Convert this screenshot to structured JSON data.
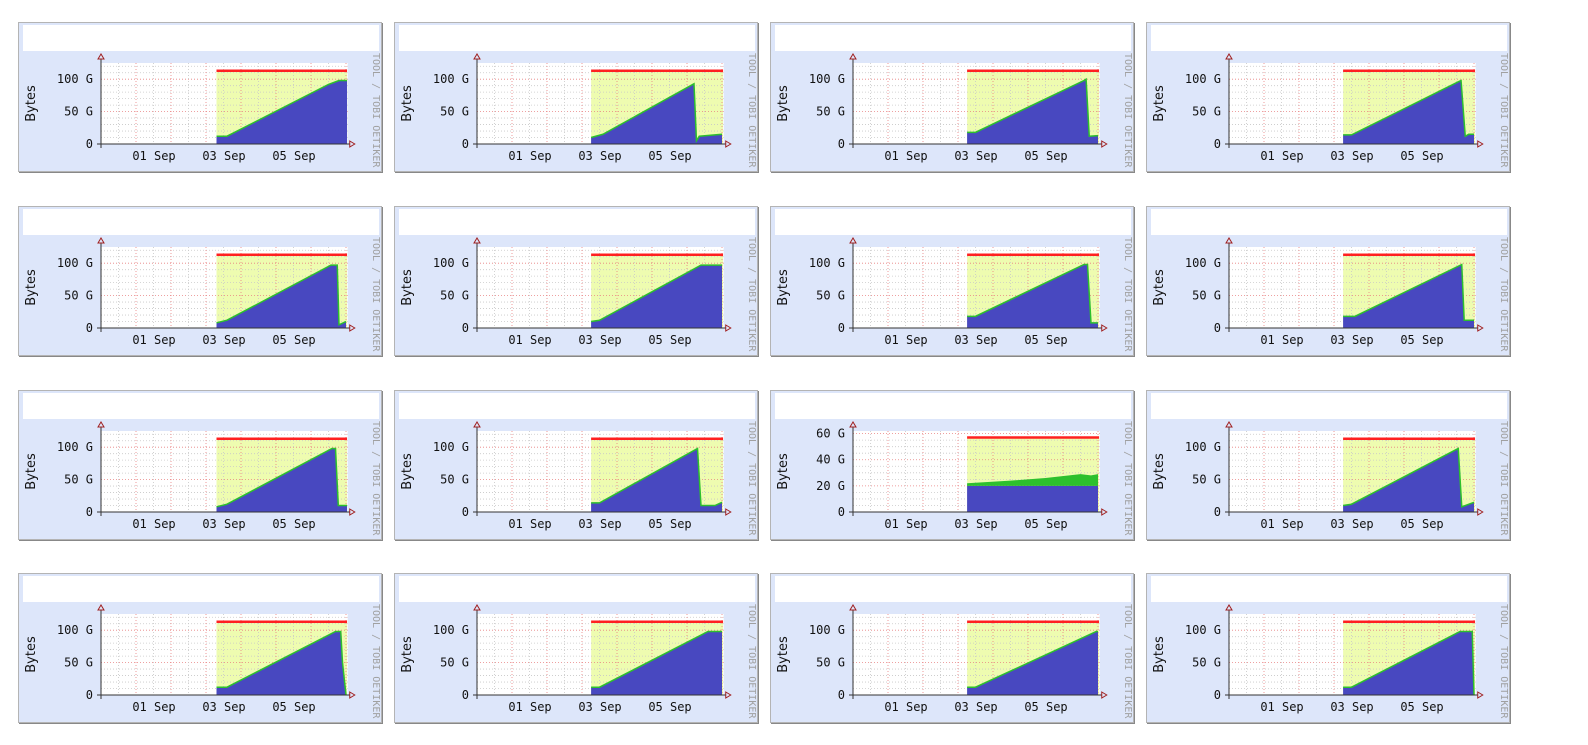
{
  "watermark": "TOOL / TOBI OETIKER",
  "colors": {
    "used": "#4848c0",
    "line": "#2dc02d",
    "capacity_fill": "#eefcb0",
    "limit": "#ff2020",
    "grid_major": "#e88080",
    "grid_minor": "#c8c8c8",
    "bg": "#dde6fa"
  },
  "chart_data": {
    "type": "area",
    "ylabel": "Bytes",
    "x_ticks": [
      {
        "d": 1,
        "label": "01 Sep"
      },
      {
        "d": 3,
        "label": "03 Sep"
      },
      {
        "d": 5,
        "label": "05 Sep"
      }
    ],
    "xlim": [
      0,
      7.05
    ],
    "graphs": [
      {
        "ymax": 125,
        "yticks": [
          [
            0,
            "0"
          ],
          [
            50,
            "50 G"
          ],
          [
            100,
            "100 G"
          ]
        ],
        "limit": 113,
        "start": 3.3,
        "used": [
          [
            3.3,
            12
          ],
          [
            3.6,
            12
          ],
          [
            6.5,
            92
          ],
          [
            6.8,
            98
          ],
          [
            7.03,
            98
          ]
        ]
      },
      {
        "ymax": 125,
        "yticks": [
          [
            0,
            "0"
          ],
          [
            50,
            "50 G"
          ],
          [
            100,
            "100 G"
          ]
        ],
        "limit": 113,
        "start": 3.26,
        "used": [
          [
            3.26,
            10
          ],
          [
            3.6,
            15
          ],
          [
            6.2,
            93
          ],
          [
            6.27,
            5
          ],
          [
            6.35,
            12
          ],
          [
            7.0,
            15
          ]
        ]
      },
      {
        "ymax": 125,
        "yticks": [
          [
            0,
            "0"
          ],
          [
            50,
            "50 G"
          ],
          [
            100,
            "100 G"
          ]
        ],
        "limit": 113,
        "start": 3.26,
        "used": [
          [
            3.26,
            18
          ],
          [
            3.5,
            18
          ],
          [
            6.6,
            98
          ],
          [
            6.66,
            100
          ],
          [
            6.75,
            12
          ],
          [
            7.0,
            13
          ]
        ]
      },
      {
        "ymax": 125,
        "yticks": [
          [
            0,
            "0"
          ],
          [
            50,
            "50 G"
          ],
          [
            100,
            "100 G"
          ]
        ],
        "limit": 113,
        "start": 3.26,
        "used": [
          [
            3.26,
            14
          ],
          [
            3.5,
            14
          ],
          [
            6.55,
            96
          ],
          [
            6.63,
            98
          ],
          [
            6.75,
            12
          ],
          [
            6.85,
            15
          ],
          [
            7.0,
            15
          ]
        ]
      },
      {
        "ymax": 125,
        "yticks": [
          [
            0,
            "0"
          ],
          [
            50,
            "50 G"
          ],
          [
            100,
            "100 G"
          ]
        ],
        "limit": 113,
        "start": 3.3,
        "used": [
          [
            3.3,
            8
          ],
          [
            3.6,
            12
          ],
          [
            6.57,
            97
          ],
          [
            6.75,
            97
          ],
          [
            6.8,
            5
          ],
          [
            7.0,
            10
          ]
        ]
      },
      {
        "ymax": 125,
        "yticks": [
          [
            0,
            "0"
          ],
          [
            50,
            "50 G"
          ],
          [
            100,
            "100 G"
          ]
        ],
        "limit": 113,
        "start": 3.26,
        "used": [
          [
            3.26,
            10
          ],
          [
            3.5,
            12
          ],
          [
            6.4,
            97
          ],
          [
            7.0,
            97
          ]
        ]
      },
      {
        "ymax": 125,
        "yticks": [
          [
            0,
            "0"
          ],
          [
            50,
            "50 G"
          ],
          [
            100,
            "100 G"
          ]
        ],
        "limit": 113,
        "start": 3.26,
        "used": [
          [
            3.26,
            18
          ],
          [
            3.5,
            18
          ],
          [
            6.6,
            98
          ],
          [
            6.7,
            98
          ],
          [
            6.8,
            8
          ],
          [
            7.0,
            8
          ]
        ]
      },
      {
        "ymax": 125,
        "yticks": [
          [
            0,
            "0"
          ],
          [
            50,
            "50 G"
          ],
          [
            100,
            "100 G"
          ]
        ],
        "limit": 113,
        "start": 3.26,
        "used": [
          [
            3.26,
            18
          ],
          [
            3.6,
            18
          ],
          [
            6.65,
            98
          ],
          [
            6.72,
            12
          ],
          [
            7.0,
            12
          ]
        ]
      },
      {
        "ymax": 125,
        "yticks": [
          [
            0,
            "0"
          ],
          [
            50,
            "50 G"
          ],
          [
            100,
            "100 G"
          ]
        ],
        "limit": 113,
        "start": 3.3,
        "used": [
          [
            3.3,
            8
          ],
          [
            3.6,
            12
          ],
          [
            6.6,
            98
          ],
          [
            6.7,
            98
          ],
          [
            6.78,
            10
          ],
          [
            7.03,
            10
          ]
        ]
      },
      {
        "ymax": 125,
        "yticks": [
          [
            0,
            "0"
          ],
          [
            50,
            "50 G"
          ],
          [
            100,
            "100 G"
          ]
        ],
        "limit": 113,
        "start": 3.26,
        "used": [
          [
            3.26,
            14
          ],
          [
            3.5,
            14
          ],
          [
            6.3,
            98
          ],
          [
            6.4,
            10
          ],
          [
            6.8,
            10
          ],
          [
            7.0,
            15
          ]
        ]
      },
      {
        "ymax": 62,
        "yticks": [
          [
            0,
            "0"
          ],
          [
            20,
            "20 G"
          ],
          [
            40,
            "40 G"
          ],
          [
            60,
            "60 G"
          ]
        ],
        "limit": 57,
        "start": 3.26,
        "used": [
          [
            3.26,
            20
          ],
          [
            7.0,
            20
          ]
        ],
        "line": [
          [
            3.26,
            22
          ],
          [
            4.5,
            24
          ],
          [
            5.5,
            26
          ],
          [
            6.5,
            29
          ],
          [
            6.8,
            28
          ],
          [
            7.0,
            29
          ]
        ]
      },
      {
        "ymax": 125,
        "yticks": [
          [
            0,
            "0"
          ],
          [
            50,
            "50 G"
          ],
          [
            100,
            "100 G"
          ]
        ],
        "limit": 113,
        "start": 3.26,
        "used": [
          [
            3.26,
            10
          ],
          [
            3.5,
            12
          ],
          [
            6.55,
            98
          ],
          [
            6.65,
            8
          ],
          [
            7.0,
            15
          ]
        ]
      },
      {
        "ymax": 125,
        "yticks": [
          [
            0,
            "0"
          ],
          [
            50,
            "50 G"
          ],
          [
            100,
            "100 G"
          ]
        ],
        "limit": 113,
        "start": 3.3,
        "used": [
          [
            3.3,
            12
          ],
          [
            3.6,
            12
          ],
          [
            6.7,
            98
          ],
          [
            6.85,
            98
          ],
          [
            6.9,
            50
          ],
          [
            7.0,
            0
          ]
        ]
      },
      {
        "ymax": 125,
        "yticks": [
          [
            0,
            "0"
          ],
          [
            50,
            "50 G"
          ],
          [
            100,
            "100 G"
          ]
        ],
        "limit": 113,
        "start": 3.26,
        "used": [
          [
            3.26,
            12
          ],
          [
            3.5,
            12
          ],
          [
            6.6,
            98
          ],
          [
            7.0,
            98
          ]
        ]
      },
      {
        "ymax": 125,
        "yticks": [
          [
            0,
            "0"
          ],
          [
            50,
            "50 G"
          ],
          [
            100,
            "100 G"
          ]
        ],
        "limit": 113,
        "start": 3.26,
        "used": [
          [
            3.26,
            12
          ],
          [
            3.5,
            12
          ],
          [
            6.95,
            98
          ],
          [
            7.0,
            98
          ]
        ]
      },
      {
        "ymax": 125,
        "yticks": [
          [
            0,
            "0"
          ],
          [
            50,
            "50 G"
          ],
          [
            100,
            "100 G"
          ]
        ],
        "limit": 113,
        "start": 3.26,
        "used": [
          [
            3.26,
            12
          ],
          [
            3.5,
            12
          ],
          [
            6.6,
            98
          ],
          [
            6.95,
            98
          ],
          [
            7.0,
            0
          ]
        ]
      }
    ]
  }
}
